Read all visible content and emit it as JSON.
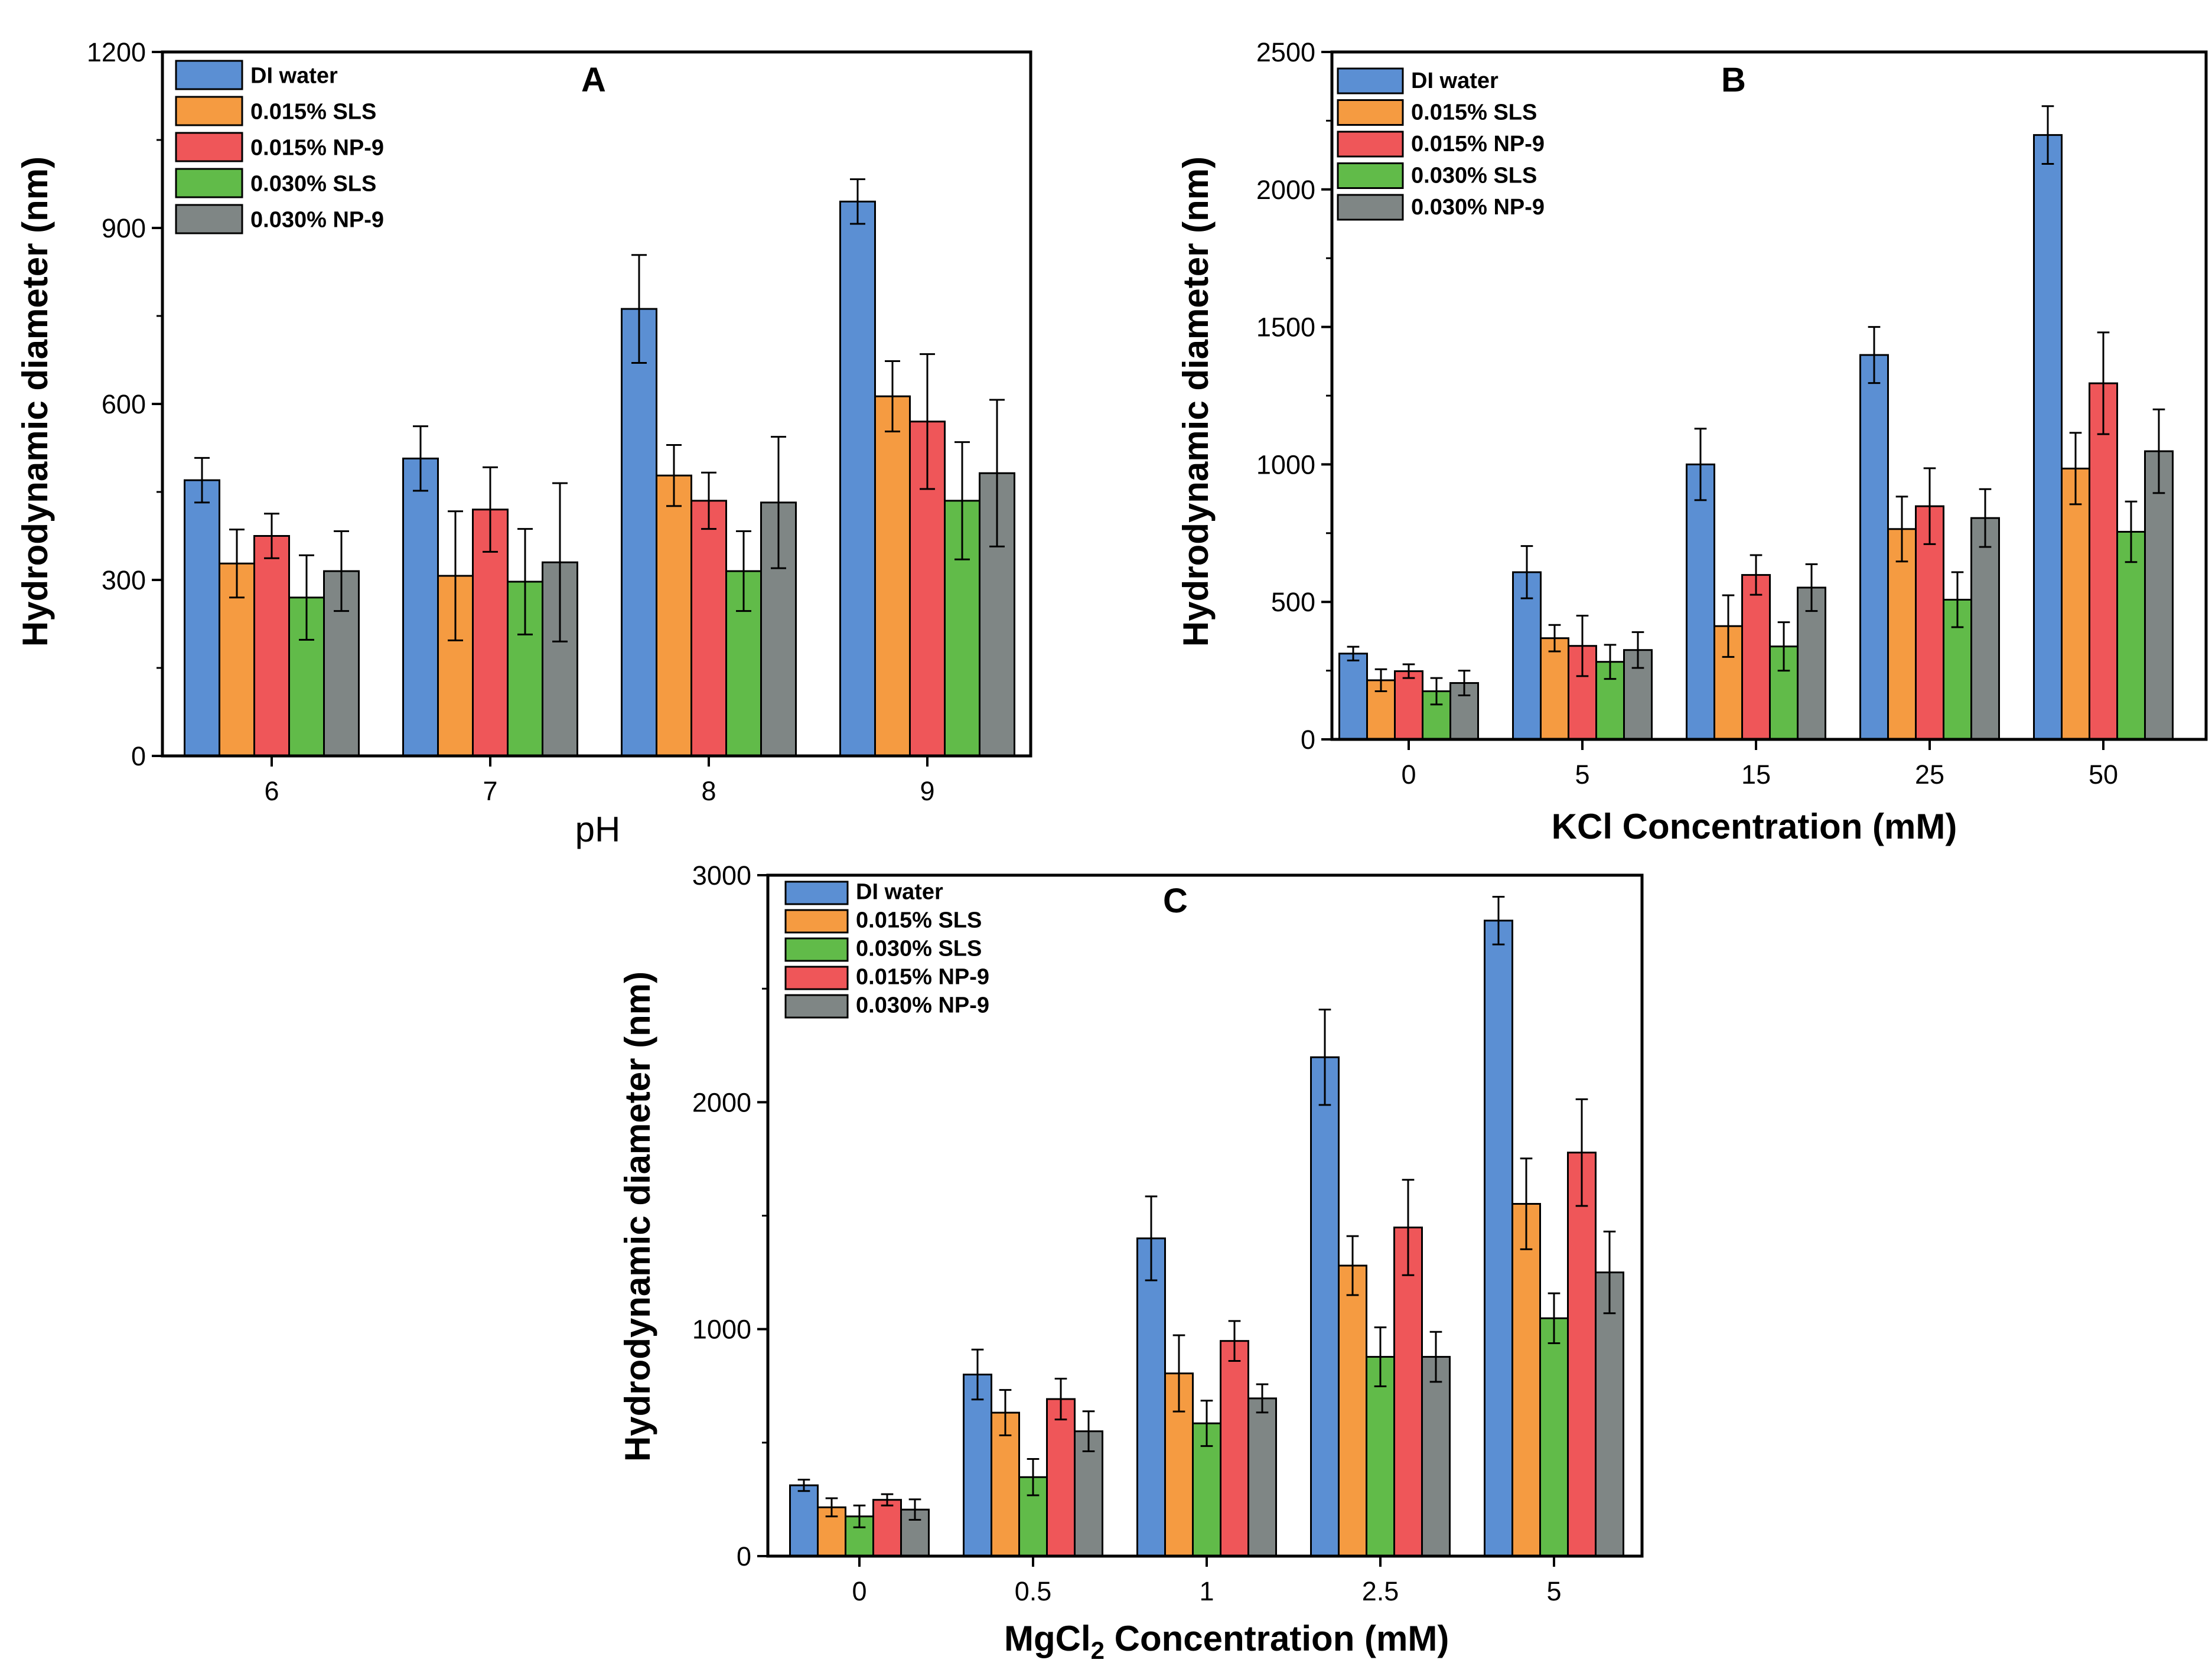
{
  "colors": {
    "DI water": "#5b8fd3",
    "0.015% SLS": "#f59b41",
    "0.015% NP-9": "#ef5659",
    "0.030% SLS": "#61bb49",
    "0.030% NP-9": "#7f8685"
  },
  "chart_data": [
    {
      "type": "bar",
      "panel": "A",
      "title": "A",
      "xlabel": "pH",
      "ylabel": "Hydrodynamic diameter (nm)",
      "ylim": [
        0,
        1200
      ],
      "yticks": [
        "0",
        "300",
        "600",
        "900",
        "1200"
      ],
      "categories": [
        "6",
        "7",
        "8",
        "9"
      ],
      "legend_position": "top-left",
      "series": [
        {
          "name": "DI water",
          "values": [
            470,
            507,
            762,
            945
          ],
          "errors": [
            38,
            55,
            92,
            38
          ]
        },
        {
          "name": "0.015% SLS",
          "values": [
            328,
            307,
            478,
            613
          ],
          "errors": [
            58,
            110,
            52,
            60
          ]
        },
        {
          "name": "0.015% NP-9",
          "values": [
            375,
            420,
            435,
            570
          ],
          "errors": [
            38,
            72,
            48,
            115
          ]
        },
        {
          "name": "0.030% SLS",
          "values": [
            270,
            297,
            315,
            435
          ],
          "errors": [
            72,
            90,
            68,
            100
          ]
        },
        {
          "name": "0.030% NP-9",
          "values": [
            315,
            330,
            432,
            482
          ],
          "errors": [
            68,
            135,
            112,
            125
          ]
        }
      ]
    },
    {
      "type": "bar",
      "panel": "B",
      "title": "B",
      "xlabel": "KCl Concentration (mM)",
      "ylabel": "Hydrodynamic diameter (nm)",
      "ylim": [
        0,
        2500
      ],
      "yticks": [
        "0",
        "500",
        "1000",
        "1500",
        "2000",
        "2500"
      ],
      "categories": [
        "0",
        "5",
        "15",
        "25",
        "50"
      ],
      "legend_position": "top-left",
      "series": [
        {
          "name": "DI water",
          "values": [
            312,
            608,
            1000,
            1398,
            2198
          ],
          "errors": [
            25,
            95,
            130,
            102,
            105
          ]
        },
        {
          "name": "0.015% SLS",
          "values": [
            215,
            368,
            412,
            765,
            985
          ],
          "errors": [
            40,
            48,
            112,
            118,
            130
          ]
        },
        {
          "name": "0.015% NP-9",
          "values": [
            248,
            340,
            598,
            848,
            1295
          ],
          "errors": [
            25,
            110,
            72,
            138,
            185
          ]
        },
        {
          "name": "0.030% SLS",
          "values": [
            175,
            282,
            338,
            508,
            755
          ],
          "errors": [
            48,
            62,
            88,
            100,
            110
          ]
        },
        {
          "name": "0.030% NP-9",
          "values": [
            205,
            325,
            552,
            805,
            1048
          ],
          "errors": [
            45,
            65,
            85,
            105,
            152
          ]
        }
      ]
    },
    {
      "type": "bar",
      "panel": "C",
      "title": "C",
      "xlabel_main": "MgCl",
      "xlabel_sub": "2",
      "xlabel_rest": " Concentration (mM)",
      "ylabel": "Hydrodynamic diameter (nm)",
      "ylim": [
        0,
        3000
      ],
      "yticks": [
        "0",
        "1000",
        "2000",
        "3000"
      ],
      "categories": [
        "0",
        "0.5",
        "1",
        "2.5",
        "5"
      ],
      "legend_position": "top-left",
      "series": [
        {
          "name": "DI water",
          "values": [
            312,
            800,
            1400,
            2198,
            2800
          ],
          "errors": [
            25,
            110,
            185,
            210,
            105
          ]
        },
        {
          "name": "0.015% SLS",
          "values": [
            215,
            632,
            805,
            1280,
            1552
          ],
          "errors": [
            40,
            100,
            168,
            130,
            200
          ]
        },
        {
          "name": "0.030% SLS",
          "values": [
            175,
            348,
            585,
            878,
            1048
          ],
          "errors": [
            48,
            80,
            100,
            130,
            110
          ]
        },
        {
          "name": "0.015% NP-9",
          "values": [
            248,
            692,
            948,
            1448,
            1778
          ],
          "errors": [
            25,
            90,
            88,
            210,
            235
          ]
        },
        {
          "name": "0.030% NP-9",
          "values": [
            205,
            550,
            695,
            878,
            1250
          ],
          "errors": [
            45,
            88,
            62,
            110,
            180
          ]
        }
      ]
    }
  ]
}
